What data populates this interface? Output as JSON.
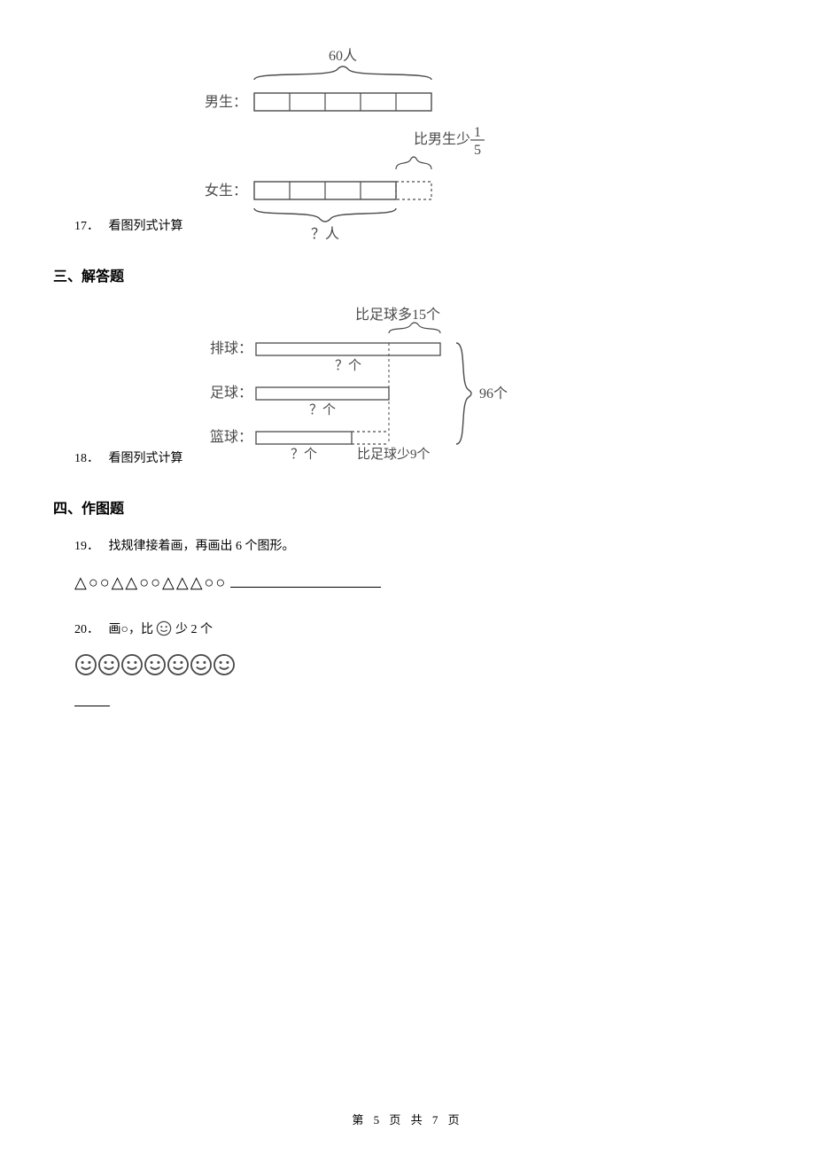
{
  "q17": {
    "number": "17．",
    "stem": "看图列式计算",
    "fig": {
      "stroke": "#4a4a4a",
      "text_color": "#4a4a4a",
      "font_size": 16,
      "label_boys": "男生：",
      "label_girls": "女生：",
      "top_label": "60人",
      "right_label": "比男生少",
      "fraction_num": "1",
      "fraction_den": "5",
      "bottom_label": "？人",
      "boys_segments": 5,
      "girls_segments": 4
    }
  },
  "section3": "三、解答题",
  "q18": {
    "number": "18．",
    "stem": "看图列式计算",
    "fig": {
      "stroke": "#4a4a4a",
      "text_color": "#4a4a4a",
      "font_size": 16,
      "label_volley": "排球：",
      "label_soccer": "足球：",
      "label_basket": "篮球：",
      "top_right": "比足球多15个",
      "mid_q": "？个",
      "right_total": "96个",
      "bottom_text": "比足球少9个"
    }
  },
  "section4": "四、作图题",
  "q19": {
    "number": "19．",
    "stem": "找规律接着画，再画出 6 个图形。",
    "pattern": "△○○△△○○△△△○○"
  },
  "q20": {
    "number": "20．",
    "stem_before": "画○，比",
    "stem_after": "少 2 个",
    "smiley_count": 7,
    "smiley_stroke": "#4a4a4a"
  },
  "footer": {
    "prefix": "第",
    "page": "5",
    "mid": "页 共",
    "total": "7",
    "suffix": "页"
  }
}
